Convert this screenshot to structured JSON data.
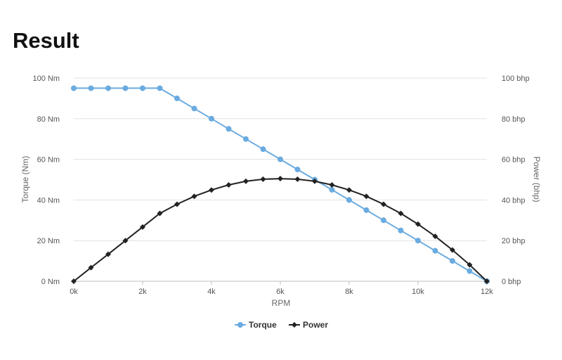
{
  "page": {
    "title": "Result"
  },
  "chart_data": {
    "type": "line",
    "xlabel": "RPM",
    "ylabel_left": "Torque (Nm)",
    "ylabel_right": "Power (bhp)",
    "xlim": [
      0,
      12000
    ],
    "ylim_left": [
      0,
      100
    ],
    "ylim_right": [
      0,
      100
    ],
    "x_ticks": [
      0,
      2000,
      4000,
      6000,
      8000,
      10000,
      12000
    ],
    "x_tick_labels": [
      "0k",
      "2k",
      "4k",
      "6k",
      "8k",
      "10k",
      "12k"
    ],
    "y_ticks": [
      0,
      20,
      40,
      60,
      80,
      100
    ],
    "y_left_tick_labels": [
      "0 Nm",
      "20 Nm",
      "40 Nm",
      "60 Nm",
      "80 Nm",
      "100 Nm"
    ],
    "y_right_tick_labels": [
      "0 bhp",
      "20 bhp",
      "40 bhp",
      "60 bhp",
      "80 bhp",
      "100 bhp"
    ],
    "grid": true,
    "legend_position": "bottom-center",
    "x": [
      0,
      500,
      1000,
      1500,
      2000,
      2500,
      3000,
      3500,
      4000,
      4500,
      5000,
      5500,
      6000,
      6500,
      7000,
      7500,
      8000,
      8500,
      9000,
      9500,
      10000,
      10500,
      11000,
      11500,
      12000
    ],
    "series": [
      {
        "name": "Torque",
        "axis": "left",
        "color": "#6aabe0",
        "marker": "circle",
        "values": [
          95,
          95,
          95,
          95,
          95,
          95,
          90,
          85,
          80,
          75,
          70,
          65,
          60,
          55,
          50,
          45,
          40,
          35,
          30,
          25,
          20,
          15,
          10,
          5,
          0
        ]
      },
      {
        "name": "Power",
        "axis": "right",
        "color": "#222222",
        "marker": "diamond",
        "values": [
          0,
          6.7,
          13.3,
          20.0,
          26.7,
          33.4,
          37.9,
          41.8,
          44.9,
          47.4,
          49.2,
          50.2,
          50.5,
          50.2,
          49.2,
          47.4,
          44.9,
          41.8,
          37.9,
          33.4,
          28.1,
          22.1,
          15.4,
          8.1,
          0
        ]
      }
    ]
  }
}
